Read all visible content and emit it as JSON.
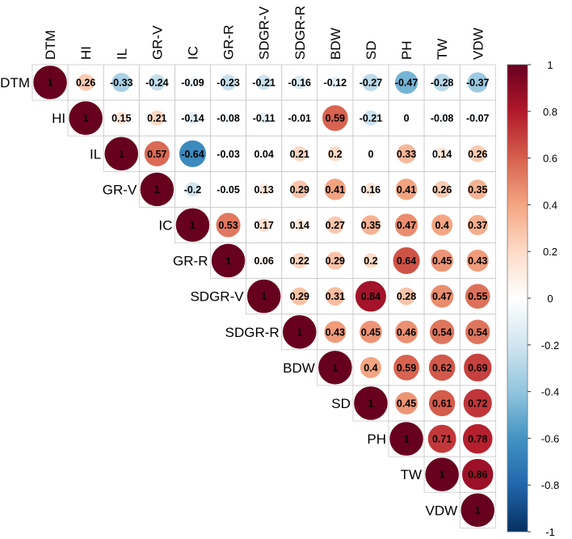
{
  "chart_data": {
    "type": "heatmap",
    "variables": [
      "DTM",
      "HI",
      "IL",
      "GR-V",
      "IC",
      "GR-R",
      "SDGR-V",
      "SDGR-R",
      "BDW",
      "SD",
      "PH",
      "TW",
      "VDW"
    ],
    "matrix": [
      [
        1,
        0.26,
        -0.33,
        -0.24,
        -0.09,
        -0.23,
        -0.21,
        -0.16,
        -0.12,
        -0.27,
        -0.47,
        -0.28,
        -0.37
      ],
      [
        null,
        1,
        0.15,
        0.21,
        -0.14,
        -0.08,
        -0.11,
        -0.01,
        0.59,
        -0.21,
        0,
        -0.08,
        -0.07
      ],
      [
        null,
        null,
        1,
        0.57,
        -0.64,
        -0.03,
        0.04,
        0.21,
        0.2,
        0,
        0.33,
        0.14,
        0.26
      ],
      [
        null,
        null,
        null,
        1,
        -0.2,
        -0.05,
        0.13,
        0.29,
        0.41,
        0.16,
        0.41,
        0.26,
        0.35
      ],
      [
        null,
        null,
        null,
        null,
        1,
        0.53,
        0.17,
        0.14,
        0.27,
        0.35,
        0.47,
        0.4,
        0.37
      ],
      [
        null,
        null,
        null,
        null,
        null,
        1,
        0.06,
        0.22,
        0.29,
        0.2,
        0.64,
        0.45,
        0.43
      ],
      [
        null,
        null,
        null,
        null,
        null,
        null,
        1,
        0.29,
        0.31,
        0.84,
        0.28,
        0.47,
        0.55
      ],
      [
        null,
        null,
        null,
        null,
        null,
        null,
        null,
        1,
        0.43,
        0.45,
        0.46,
        0.54,
        0.54
      ],
      [
        null,
        null,
        null,
        null,
        null,
        null,
        null,
        null,
        1,
        0.4,
        0.59,
        0.62,
        0.69
      ],
      [
        null,
        null,
        null,
        null,
        null,
        null,
        null,
        null,
        null,
        1,
        0.45,
        0.61,
        0.72
      ],
      [
        null,
        null,
        null,
        null,
        null,
        null,
        null,
        null,
        null,
        null,
        1,
        0.71,
        0.78
      ],
      [
        null,
        null,
        null,
        null,
        null,
        null,
        null,
        null,
        null,
        null,
        null,
        1,
        0.86
      ],
      [
        null,
        null,
        null,
        null,
        null,
        null,
        null,
        null,
        null,
        null,
        null,
        null,
        1
      ]
    ],
    "value_range": [
      -1,
      1
    ],
    "colorbar": {
      "ticks": [
        1,
        0.8,
        0.6,
        0.4,
        0.2,
        0,
        -0.2,
        -0.4,
        -0.6,
        -0.8,
        -1
      ],
      "tick_labels": [
        "1",
        "0.8",
        "0.6",
        "0.4",
        "0.2",
        "0",
        "-0.2",
        "-0.4",
        "-0.6",
        "-0.8",
        "-1"
      ],
      "colors": [
        "#67001F",
        "#B2182B",
        "#D6604D",
        "#F4A582",
        "#FDDBC7",
        "#FFFFFF",
        "#D1E5F0",
        "#92C5DE",
        "#4393C3",
        "#2166AC",
        "#053061"
      ]
    },
    "layout": "upper-triangle",
    "marker": "circle-size-by-magnitude",
    "grid": true,
    "legend": "right"
  }
}
